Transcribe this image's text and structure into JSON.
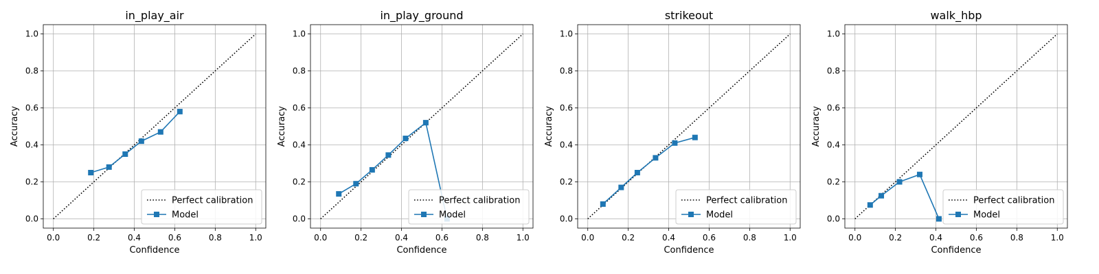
{
  "chart_data": [
    {
      "type": "line",
      "title": "in_play_air",
      "xlabel": "Confidence",
      "ylabel": "Accuracy",
      "xlim": [
        -0.05,
        1.05
      ],
      "ylim": [
        -0.05,
        1.05
      ],
      "xticks": [
        "0.0",
        "0.2",
        "0.4",
        "0.6",
        "0.8",
        "1.0"
      ],
      "yticks": [
        "0.0",
        "0.2",
        "0.4",
        "0.6",
        "0.8",
        "1.0"
      ],
      "grid": true,
      "legend_position": "bottom-right",
      "series": [
        {
          "name": "Perfect calibration",
          "style": "dotted",
          "color": "#000000",
          "x": [
            0,
            1
          ],
          "y": [
            0,
            1
          ]
        },
        {
          "name": "Model",
          "style": "line-square",
          "color": "#1f77b4",
          "x": [
            0.185,
            0.275,
            0.355,
            0.435,
            0.53,
            0.625
          ],
          "y": [
            0.25,
            0.28,
            0.35,
            0.42,
            0.47,
            0.58
          ]
        }
      ]
    },
    {
      "type": "line",
      "title": "in_play_ground",
      "xlabel": "Confidence",
      "ylabel": "Accuracy",
      "xlim": [
        -0.05,
        1.05
      ],
      "ylim": [
        -0.05,
        1.05
      ],
      "xticks": [
        "0.0",
        "0.2",
        "0.4",
        "0.6",
        "0.8",
        "1.0"
      ],
      "yticks": [
        "0.0",
        "0.2",
        "0.4",
        "0.6",
        "0.8",
        "1.0"
      ],
      "grid": true,
      "legend_position": "bottom-right",
      "series": [
        {
          "name": "Perfect calibration",
          "style": "dotted",
          "color": "#000000",
          "x": [
            0,
            1
          ],
          "y": [
            0,
            1
          ]
        },
        {
          "name": "Model",
          "style": "line-square",
          "color": "#1f77b4",
          "x": [
            0.09,
            0.175,
            0.255,
            0.335,
            0.42,
            0.52,
            0.625
          ],
          "y": [
            0.135,
            0.19,
            0.265,
            0.345,
            0.435,
            0.52,
            0.0
          ]
        }
      ]
    },
    {
      "type": "line",
      "title": "strikeout",
      "xlabel": "Confidence",
      "ylabel": "Accuracy",
      "xlim": [
        -0.05,
        1.05
      ],
      "ylim": [
        -0.05,
        1.05
      ],
      "xticks": [
        "0.0",
        "0.2",
        "0.4",
        "0.6",
        "0.8",
        "1.0"
      ],
      "yticks": [
        "0.0",
        "0.2",
        "0.4",
        "0.6",
        "0.8",
        "1.0"
      ],
      "grid": true,
      "legend_position": "bottom-right",
      "series": [
        {
          "name": "Perfect calibration",
          "style": "dotted",
          "color": "#000000",
          "x": [
            0,
            1
          ],
          "y": [
            0,
            1
          ]
        },
        {
          "name": "Model",
          "style": "line-square",
          "color": "#1f77b4",
          "x": [
            0.075,
            0.165,
            0.245,
            0.335,
            0.43,
            0.53
          ],
          "y": [
            0.08,
            0.17,
            0.25,
            0.33,
            0.41,
            0.44
          ]
        }
      ]
    },
    {
      "type": "line",
      "title": "walk_hbp",
      "xlabel": "Confidence",
      "ylabel": "Accuracy",
      "xlim": [
        -0.05,
        1.05
      ],
      "ylim": [
        -0.05,
        1.05
      ],
      "xticks": [
        "0.0",
        "0.2",
        "0.4",
        "0.6",
        "0.8",
        "1.0"
      ],
      "yticks": [
        "0.0",
        "0.2",
        "0.4",
        "0.6",
        "0.8",
        "1.0"
      ],
      "grid": true,
      "legend_position": "bottom-right",
      "series": [
        {
          "name": "Perfect calibration",
          "style": "dotted",
          "color": "#000000",
          "x": [
            0,
            1
          ],
          "y": [
            0,
            1
          ]
        },
        {
          "name": "Model",
          "style": "line-square",
          "color": "#1f77b4",
          "x": [
            0.075,
            0.13,
            0.22,
            0.32,
            0.415
          ],
          "y": [
            0.075,
            0.125,
            0.2,
            0.24,
            0.0
          ]
        }
      ]
    }
  ]
}
